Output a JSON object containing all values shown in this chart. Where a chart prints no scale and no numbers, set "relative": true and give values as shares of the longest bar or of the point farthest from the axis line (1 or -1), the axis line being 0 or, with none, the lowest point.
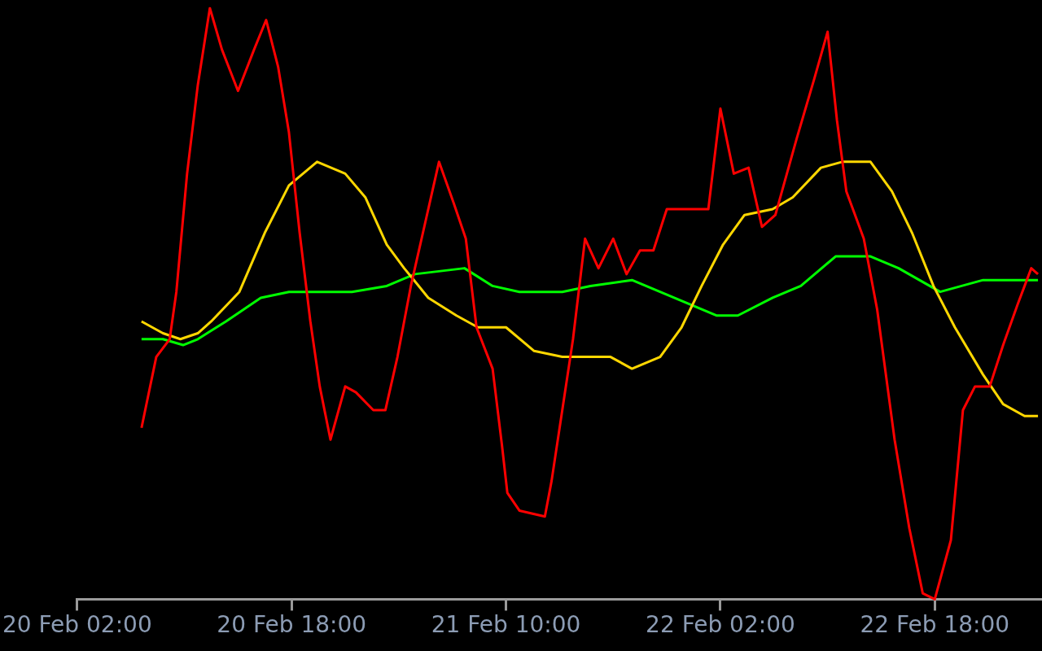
{
  "chart_data": {
    "type": "line",
    "relative": true,
    "grid": false,
    "legend": false,
    "marker": "none",
    "line_style": "solid",
    "xlim": [
      "--02-20T02:00",
      "--02-23T02:00"
    ],
    "xticks": [
      {
        "value": "--02-20T02:00",
        "label": "20 Feb 02:00"
      },
      {
        "value": "--02-20T18:00",
        "label": "20 Feb 18:00"
      },
      {
        "value": "--02-21T10:00",
        "label": "21 Feb 10:00"
      },
      {
        "value": "--02-22T02:00",
        "label": "22 Feb 02:00"
      },
      {
        "value": "--02-22T18:00",
        "label": "22 Feb 18:00"
      }
    ],
    "series": [
      {
        "color": "#ff0000",
        "x": [
          "--02-20T06:48",
          "--02-20T07:54",
          "--02-20T08:54",
          "--02-20T09:24",
          "--02-20T10:12",
          "--02-20T11:00",
          "--02-20T11:54",
          "--02-20T12:48",
          "--02-20T14:00",
          "--02-20T15:12",
          "--02-20T16:06",
          "--02-20T17:00",
          "--02-20T17:48",
          "--02-20T18:36",
          "--02-20T19:24",
          "--02-20T20:06",
          "--02-20T20:54",
          "--02-20T22:00",
          "--02-20T22:48",
          "--02-21T00:06",
          "--02-21T01:00",
          "--02-21T01:54",
          "--02-21T02:54",
          "--02-21T04:00",
          "--02-21T05:00",
          "--02-21T06:06",
          "--02-21T07:00",
          "--02-21T07:48",
          "--02-21T09:00",
          "--02-21T09:42",
          "--02-21T10:06",
          "--02-21T11:00",
          "--02-21T12:54",
          "--02-21T13:24",
          "--02-21T14:12",
          "--02-21T15:00",
          "--02-21T15:54",
          "--02-21T16:54",
          "--02-21T18:00",
          "--02-21T19:00",
          "--02-21T20:00",
          "--02-21T21:00",
          "--02-21T22:00",
          "--02-21T23:36",
          "--02-22T01:06",
          "--02-22T02:00",
          "--02-22T03:00",
          "--02-22T04:06",
          "--02-22T05:06",
          "--02-22T06:06",
          "--02-22T07:42",
          "--02-22T09:00",
          "--02-22T10:00",
          "--02-22T10:42",
          "--02-22T11:24",
          "--02-22T12:42",
          "--02-22T13:42",
          "--02-22T15:00",
          "--02-22T16:06",
          "--02-22T17:06",
          "--02-22T18:00",
          "--02-22T19:12",
          "--02-22T20:06",
          "--02-22T21:00",
          "--02-22T22:06",
          "--02-22T23:06",
          "--02-23T00:12",
          "--02-23T01:12",
          "--02-23T01:42"
        ],
        "values": [
          0.29,
          0.41,
          0.44,
          0.52,
          0.72,
          0.87,
          1,
          0.93,
          0.86,
          0.93,
          0.98,
          0.9,
          0.79,
          0.62,
          0.47,
          0.36,
          0.27,
          0.36,
          0.35,
          0.32,
          0.32,
          0.41,
          0.53,
          0.64,
          0.74,
          0.67,
          0.61,
          0.46,
          0.39,
          0.26,
          0.18,
          0.15,
          0.14,
          0.2,
          0.32,
          0.44,
          0.61,
          0.56,
          0.61,
          0.55,
          0.59,
          0.59,
          0.66,
          0.66,
          0.66,
          0.83,
          0.72,
          0.73,
          0.63,
          0.65,
          0.78,
          0.88,
          0.96,
          0.81,
          0.69,
          0.61,
          0.49,
          0.27,
          0.12,
          0.01,
          0,
          0.1,
          0.32,
          0.36,
          0.36,
          0.43,
          0.5,
          0.56,
          0.55
        ]
      },
      {
        "color": "#ffd700",
        "x": [
          "--02-20T06:48",
          "--02-20T08:24",
          "--02-20T09:42",
          "--02-20T11:00",
          "--02-20T12:00",
          "--02-20T14:06",
          "--02-20T16:00",
          "--02-20T17:48",
          "--02-20T19:54",
          "--02-20T22:00",
          "--02-20T23:30",
          "--02-21T01:06",
          "--02-21T02:24",
          "--02-21T04:12",
          "--02-21T06:18",
          "--02-21T07:54",
          "--02-21T10:00",
          "--02-21T12:06",
          "--02-21T14:12",
          "--02-21T16:18",
          "--02-21T17:48",
          "--02-21T19:24",
          "--02-21T21:30",
          "--02-21T23:06",
          "--02-22T00:36",
          "--02-22T02:12",
          "--02-22T03:48",
          "--02-22T05:54",
          "--02-22T07:24",
          "--02-22T09:30",
          "--02-22T11:06",
          "--02-22T13:12",
          "--02-22T14:48",
          "--02-22T16:18",
          "--02-22T17:54",
          "--02-22T19:30",
          "--02-22T21:36",
          "--02-22T23:06",
          "--02-23T00:42",
          "--02-23T01:42"
        ],
        "values": [
          0.47,
          0.45,
          0.44,
          0.45,
          0.47,
          0.52,
          0.62,
          0.7,
          0.74,
          0.72,
          0.68,
          0.6,
          0.56,
          0.51,
          0.48,
          0.46,
          0.46,
          0.42,
          0.41,
          0.41,
          0.41,
          0.39,
          0.41,
          0.46,
          0.53,
          0.6,
          0.65,
          0.66,
          0.68,
          0.73,
          0.74,
          0.74,
          0.69,
          0.62,
          0.53,
          0.46,
          0.38,
          0.33,
          0.31,
          0.31
        ]
      },
      {
        "color": "#00ff00",
        "x": [
          "--02-20T06:48",
          "--02-20T08:24",
          "--02-20T09:54",
          "--02-20T11:00",
          "--02-20T13:06",
          "--02-20T15:42",
          "--02-20T17:48",
          "--02-20T22:30",
          "--02-21T01:06",
          "--02-21T03:12",
          "--02-21T06:54",
          "--02-21T09:00",
          "--02-21T11:00",
          "--02-21T14:12",
          "--02-21T16:18",
          "--02-21T19:24",
          "--02-21T21:30",
          "--02-21T23:36",
          "--02-22T01:42",
          "--02-22T03:18",
          "--02-22T05:54",
          "--02-22T08:00",
          "--02-22T10:36",
          "--02-22T13:12",
          "--02-22T15:18",
          "--02-22T18:24",
          "--02-22T21:36",
          "--02-23T01:42"
        ],
        "values": [
          0.44,
          0.44,
          0.43,
          0.44,
          0.47,
          0.51,
          0.52,
          0.52,
          0.53,
          0.55,
          0.56,
          0.53,
          0.52,
          0.52,
          0.53,
          0.54,
          0.52,
          0.5,
          0.48,
          0.48,
          0.51,
          0.53,
          0.58,
          0.58,
          0.56,
          0.52,
          0.54,
          0.54
        ]
      }
    ]
  }
}
